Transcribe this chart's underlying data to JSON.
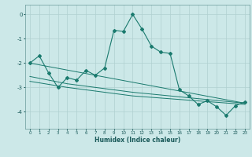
{
  "xlabel": "Humidex (Indice chaleur)",
  "ylabel": "",
  "background_color": "#cce8e8",
  "line_color": "#1a7a6e",
  "grid_color": "#b0d0d0",
  "xlim": [
    -0.5,
    23.5
  ],
  "ylim": [
    -4.7,
    0.4
  ],
  "yticks": [
    0,
    -1,
    -2,
    -3,
    -4
  ],
  "xticks": [
    0,
    1,
    2,
    3,
    4,
    5,
    6,
    7,
    8,
    9,
    10,
    11,
    12,
    13,
    14,
    15,
    16,
    17,
    18,
    19,
    20,
    21,
    22,
    23
  ],
  "series": [
    {
      "x": [
        0,
        1,
        2,
        3,
        4,
        5,
        6,
        7,
        8,
        9,
        10,
        11,
        12,
        13,
        14,
        15,
        16,
        17,
        18,
        19,
        20,
        21,
        22,
        23
      ],
      "y": [
        -2.0,
        -1.7,
        -2.4,
        -3.0,
        -2.6,
        -2.7,
        -2.3,
        -2.5,
        -2.2,
        -0.65,
        -0.7,
        0.0,
        -0.6,
        -1.3,
        -1.55,
        -1.6,
        -3.1,
        -3.35,
        -3.7,
        -3.55,
        -3.8,
        -4.15,
        -3.75,
        -3.6
      ],
      "marker": "D",
      "markersize": 2.0,
      "linewidth": 0.8
    },
    {
      "x": [
        0,
        23
      ],
      "y": [
        -2.0,
        -3.65
      ],
      "marker": null,
      "markersize": 0,
      "linewidth": 0.7
    },
    {
      "x": [
        0,
        4,
        11,
        23
      ],
      "y": [
        -2.55,
        -2.85,
        -3.2,
        -3.65
      ],
      "marker": null,
      "markersize": 0,
      "linewidth": 0.7
    },
    {
      "x": [
        0,
        4,
        11,
        23
      ],
      "y": [
        -2.75,
        -3.0,
        -3.35,
        -3.7
      ],
      "marker": null,
      "markersize": 0,
      "linewidth": 0.7
    }
  ]
}
